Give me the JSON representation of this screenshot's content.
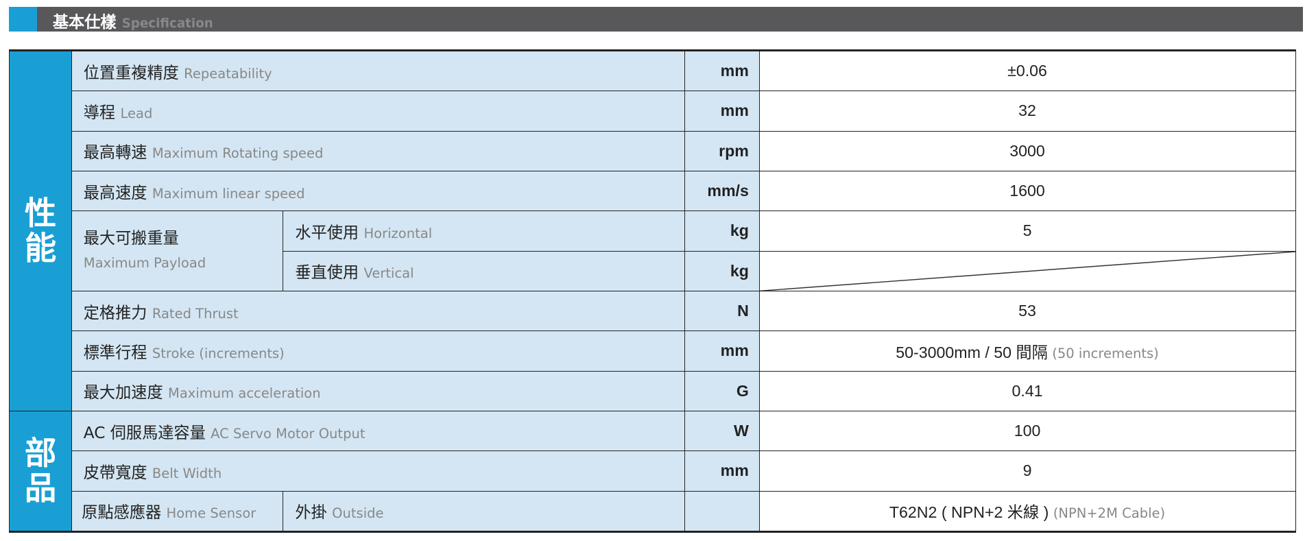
{
  "header": {
    "title_zh": "基本仕樣",
    "title_en": "Specification"
  },
  "colors": {
    "accent": "#1a9fd4",
    "header_bg": "#58585a",
    "label_bg": "#d4e6f3"
  },
  "groups": {
    "performance": "性能",
    "components": "部品"
  },
  "rows": [
    {
      "zh": "位置重複精度",
      "en": "Repeatability",
      "unit": "mm",
      "value": "±0.06"
    },
    {
      "zh": "導程",
      "en": "Lead",
      "unit": "mm",
      "value": "32"
    },
    {
      "zh": "最高轉速",
      "en": "Maximum Rotating speed",
      "unit": "rpm",
      "value": "3000"
    },
    {
      "zh": "最高速度",
      "en": "Maximum linear speed",
      "unit": "mm/s",
      "value": "1600"
    },
    {
      "zh": "最大可搬重量",
      "en": "Maximum Payload",
      "sub": [
        {
          "zh": "水平使用",
          "en": "Horizontal",
          "unit": "kg",
          "value": "5"
        },
        {
          "zh": "垂直使用",
          "en": "Vertical",
          "unit": "kg",
          "value": ""
        }
      ]
    },
    {
      "zh": "定格推力",
      "en": "Rated Thrust",
      "unit": "N",
      "value": "53"
    },
    {
      "zh": "標準行程",
      "en": "Stroke (increments)",
      "unit": "mm",
      "value": "50-3000mm / 50 間隔",
      "value_en": "(50 increments)"
    },
    {
      "zh": "最大加速度",
      "en": "Maximum acceleration",
      "unit": "G",
      "value": "0.41"
    },
    {
      "zh": "AC 伺服馬達容量",
      "en": "AC Servo Motor Output",
      "unit": "W",
      "value": "100"
    },
    {
      "zh": "皮帶寬度",
      "en": "Belt Width",
      "unit": "mm",
      "value": "9"
    },
    {
      "zh": "原點感應器",
      "en": "Home Sensor",
      "sub_zh": "外掛",
      "sub_en": "Outside",
      "unit": "",
      "value": "T62N2 ( NPN+2 米線 )",
      "value_en": "(NPN+2M Cable)"
    }
  ]
}
